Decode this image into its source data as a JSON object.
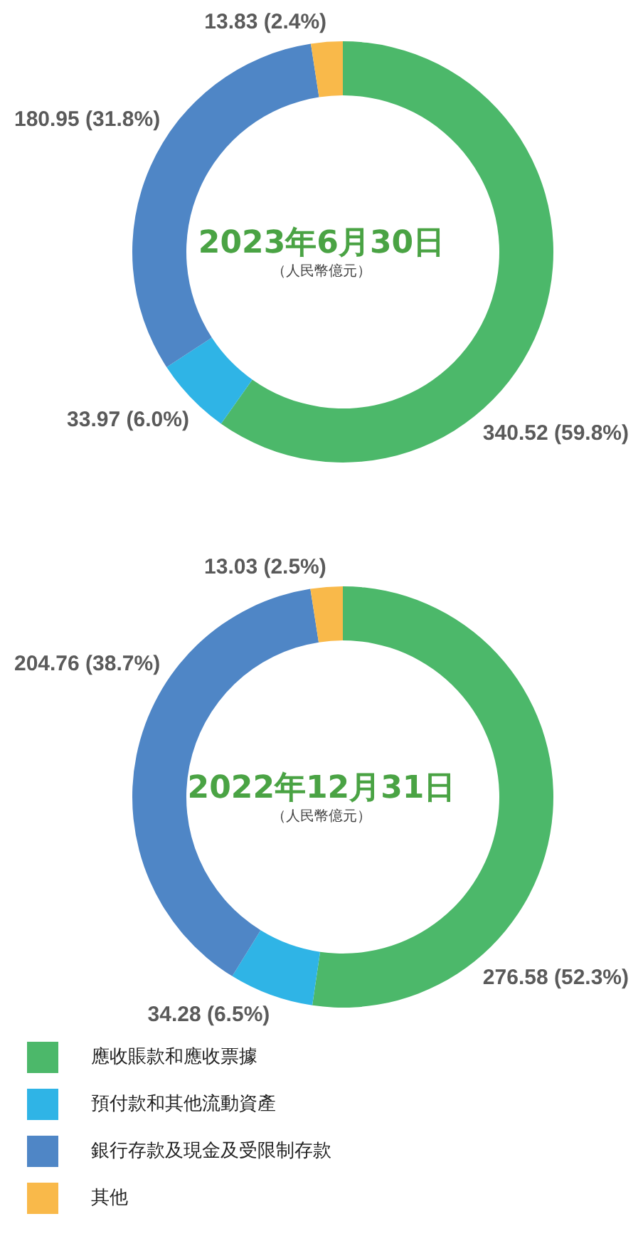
{
  "chart_data": [
    {
      "type": "donut",
      "title": "2023年6月30日",
      "subtitle": "（人民幣億元）",
      "categories": [
        null,
        null,
        null,
        null
      ],
      "values": [
        340.52,
        33.97,
        180.95,
        13.83
      ],
      "value_labels": [
        "340.52 (59.8%)",
        "33.97 (6.0%)",
        "180.95 (31.8%)",
        "13.83 (2.4%)"
      ],
      "colors": [
        "#4cb86a",
        "#2fb4e6",
        "#4f86c6",
        "#f9b94a"
      ]
    },
    {
      "type": "donut",
      "title": "2022年12月31日",
      "subtitle": "（人民幣億元）",
      "categories": [
        "應收賬款和應收票據",
        "預付款和其他流動資產",
        "銀行存款及現金及受限制存款",
        "其他"
      ],
      "values": [
        276.58,
        34.28,
        204.76,
        13.03
      ],
      "value_labels": [
        "276.58 (52.3%)",
        "34.28 (6.5%)",
        "204.76 (38.7%)",
        "13.03 (2.5%)"
      ],
      "colors": [
        "#4cb86a",
        "#2fb4e6",
        "#4f86c6",
        "#f9b94a"
      ],
      "legend": "bottom"
    }
  ]
}
